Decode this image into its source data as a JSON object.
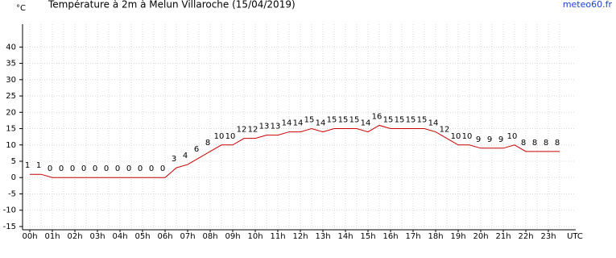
{
  "chart_data": {
    "type": "line",
    "title": "Température à 2m à Melun Villaroche (15/04/2019)",
    "source": "meteo60.fr",
    "y_label": "°C",
    "x_label": "UTC",
    "categories": [
      "00h",
      null,
      "01h",
      null,
      "02h",
      null,
      "03h",
      null,
      "04h",
      null,
      "05h",
      null,
      "06h",
      null,
      "07h",
      null,
      "08h",
      null,
      "09h",
      null,
      "10h",
      null,
      "11h",
      null,
      "12h",
      null,
      "13h",
      null,
      "14h",
      null,
      "15h",
      null,
      "16h",
      null,
      "17h",
      null,
      "18h",
      null,
      "19h",
      null,
      "20h",
      null,
      "21h",
      null,
      "22h",
      null,
      "23h",
      null
    ],
    "series": [
      {
        "name": "Température",
        "color": "#cc0000",
        "values": [
          1,
          1,
          0,
          0,
          0,
          0,
          0,
          0,
          0,
          0,
          0,
          0,
          0,
          3,
          4,
          6,
          8,
          10,
          10,
          12,
          12,
          13,
          13,
          14,
          14,
          15,
          14,
          15,
          15,
          15,
          14,
          16,
          15,
          15,
          15,
          15,
          14,
          12,
          10,
          10,
          9,
          9,
          9,
          10,
          8,
          8,
          8,
          8
        ]
      }
    ],
    "ylim": [
      -16,
      47
    ],
    "yticks": [
      -15,
      -10,
      -5,
      0,
      5,
      10,
      15,
      20,
      25,
      30,
      35,
      40
    ],
    "grid": true
  }
}
